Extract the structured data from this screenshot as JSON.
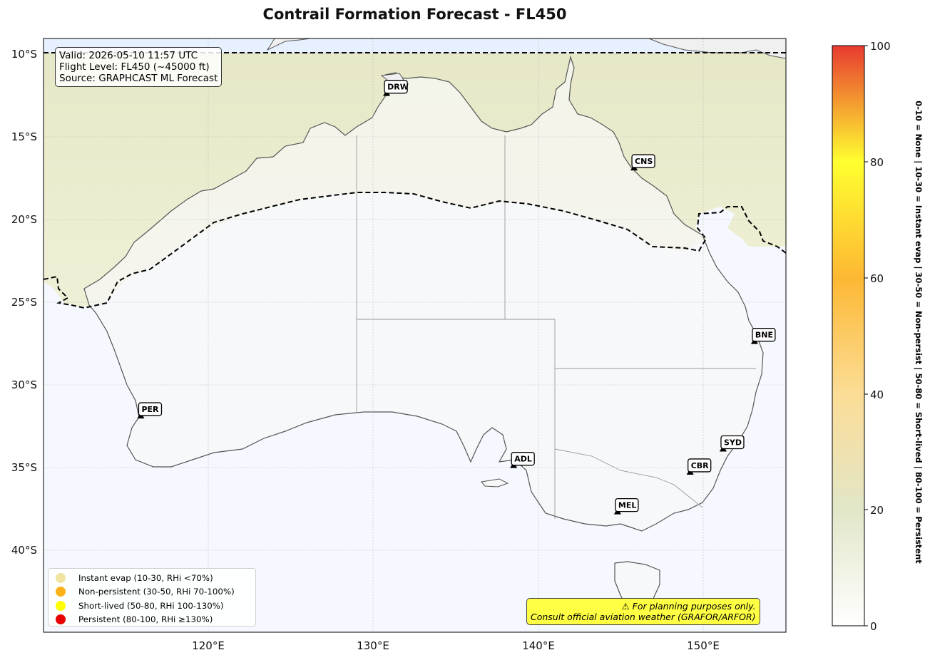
{
  "title": "Contrail Formation Forecast - FL450",
  "info_box": {
    "valid": "Valid: 2026-05-10 11:57 UTC",
    "flight_level": "Flight Level: FL450 (~45000 ft)",
    "source": "Source: GRAPHCAST ML Forecast"
  },
  "axes": {
    "lat_ticks": [
      "10°S",
      "15°S",
      "20°S",
      "25°S",
      "30°S",
      "35°S",
      "40°S"
    ],
    "lon_ticks": [
      "120°E",
      "130°E",
      "140°E",
      "150°E"
    ]
  },
  "airports": [
    {
      "code": "DRW",
      "lon": 130.8,
      "lat": -12.4
    },
    {
      "code": "CNS",
      "lon": 145.8,
      "lat": -16.9
    },
    {
      "code": "BNE",
      "lon": 153.1,
      "lat": -27.4
    },
    {
      "code": "PER",
      "lon": 115.9,
      "lat": -31.9
    },
    {
      "code": "ADL",
      "lon": 138.5,
      "lat": -34.9
    },
    {
      "code": "SYD",
      "lon": 151.2,
      "lat": -33.9
    },
    {
      "code": "CBR",
      "lon": 149.2,
      "lat": -35.3
    },
    {
      "code": "MEL",
      "lon": 144.8,
      "lat": -37.7
    }
  ],
  "legend": [
    {
      "label": "Instant evap (10-30, RHi <70%)",
      "color": "#f0e4a0"
    },
    {
      "label": "Non-persistent (30-50, RHi 70-100%)",
      "color": "#fbb117"
    },
    {
      "label": "Short-lived (50-80, RHi 100-130%)",
      "color": "#ffff00"
    },
    {
      "label": "Persistent (80-100, RHi ≥130%)",
      "color": "#e60000"
    }
  ],
  "disclaimer": {
    "line1": "⚠ For planning purposes only.",
    "line2": "Consult official aviation weather (GRAFOR/ARFOR)"
  },
  "colorbar": {
    "ticks": [
      "0",
      "20",
      "40",
      "60",
      "80",
      "100"
    ],
    "label": "0-10 = None  |  10-30 = Instant evap  |  30-50 = Non-persist  |  50-80 = Short-lived  |  80-100 = Persistent"
  }
}
